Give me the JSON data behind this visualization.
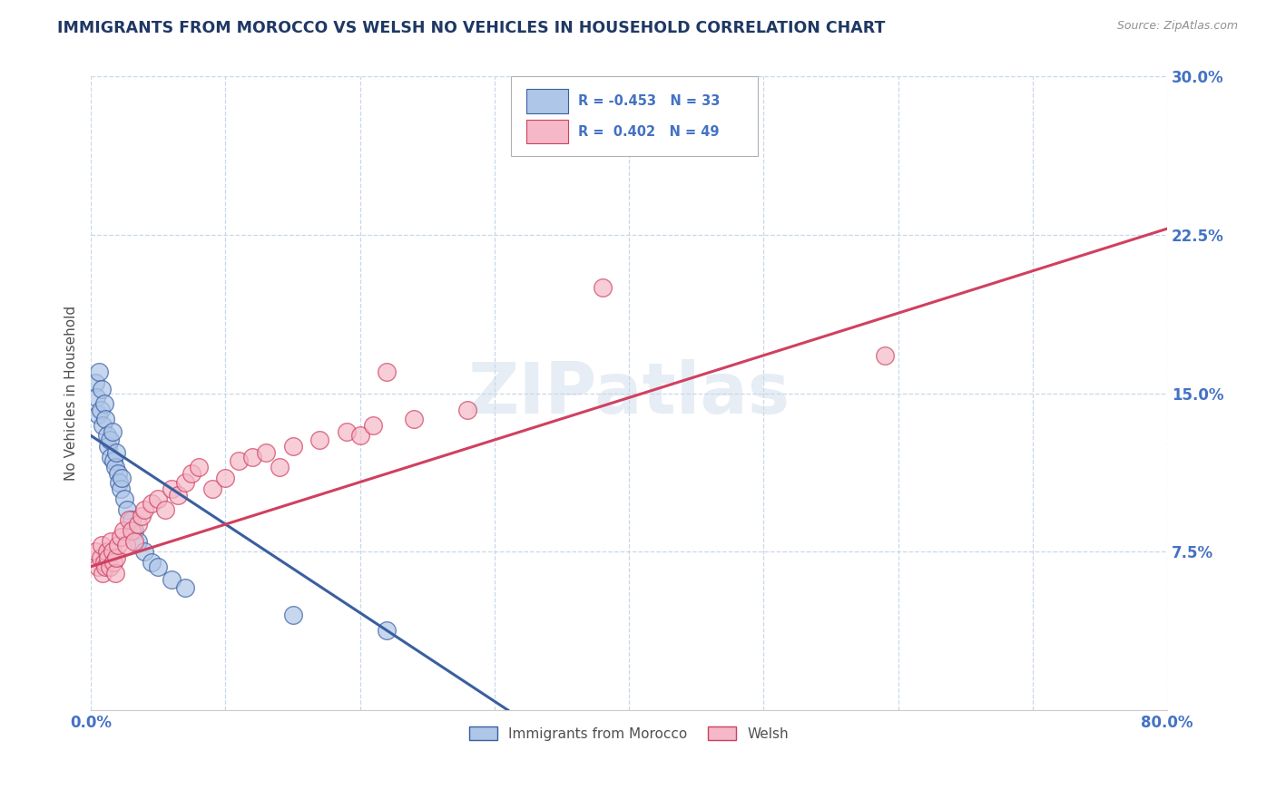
{
  "title": "IMMIGRANTS FROM MOROCCO VS WELSH NO VEHICLES IN HOUSEHOLD CORRELATION CHART",
  "source": "Source: ZipAtlas.com",
  "ylabel": "No Vehicles in Household",
  "watermark": "ZIPatlas",
  "legend_blue_R": "R = -0.453",
  "legend_blue_N": "N = 33",
  "legend_pink_R": "R =  0.402",
  "legend_pink_N": "N = 49",
  "legend_blue_label": "Immigrants from Morocco",
  "legend_pink_label": "Welsh",
  "xlim": [
    0.0,
    0.8
  ],
  "ylim": [
    0.0,
    0.3
  ],
  "xticks": [
    0.0,
    0.1,
    0.2,
    0.3,
    0.4,
    0.5,
    0.6,
    0.7,
    0.8
  ],
  "xticklabels": [
    "0.0%",
    "",
    "",
    "",
    "",
    "",
    "",
    "",
    "80.0%"
  ],
  "yticks": [
    0.0,
    0.075,
    0.15,
    0.225,
    0.3
  ],
  "yticklabels": [
    "",
    "7.5%",
    "15.0%",
    "22.5%",
    "30.0%"
  ],
  "blue_scatter_x": [
    0.003,
    0.004,
    0.005,
    0.006,
    0.007,
    0.008,
    0.009,
    0.01,
    0.011,
    0.012,
    0.013,
    0.014,
    0.015,
    0.016,
    0.017,
    0.018,
    0.019,
    0.02,
    0.021,
    0.022,
    0.023,
    0.025,
    0.027,
    0.03,
    0.032,
    0.035,
    0.04,
    0.045,
    0.05,
    0.06,
    0.07,
    0.15,
    0.22
  ],
  "blue_scatter_y": [
    0.155,
    0.148,
    0.14,
    0.16,
    0.142,
    0.152,
    0.135,
    0.145,
    0.138,
    0.13,
    0.125,
    0.128,
    0.12,
    0.132,
    0.118,
    0.115,
    0.122,
    0.112,
    0.108,
    0.105,
    0.11,
    0.1,
    0.095,
    0.09,
    0.085,
    0.08,
    0.075,
    0.07,
    0.068,
    0.062,
    0.058,
    0.045,
    0.038
  ],
  "pink_scatter_x": [
    0.003,
    0.005,
    0.007,
    0.008,
    0.009,
    0.01,
    0.011,
    0.012,
    0.013,
    0.014,
    0.015,
    0.016,
    0.017,
    0.018,
    0.019,
    0.02,
    0.022,
    0.024,
    0.026,
    0.028,
    0.03,
    0.032,
    0.035,
    0.038,
    0.04,
    0.045,
    0.05,
    0.055,
    0.06,
    0.065,
    0.07,
    0.075,
    0.08,
    0.09,
    0.1,
    0.11,
    0.12,
    0.13,
    0.14,
    0.15,
    0.17,
    0.19,
    0.2,
    0.21,
    0.22,
    0.24,
    0.28,
    0.38,
    0.59
  ],
  "pink_scatter_y": [
    0.075,
    0.068,
    0.072,
    0.078,
    0.065,
    0.07,
    0.068,
    0.075,
    0.072,
    0.068,
    0.08,
    0.075,
    0.07,
    0.065,
    0.072,
    0.078,
    0.082,
    0.085,
    0.078,
    0.09,
    0.085,
    0.08,
    0.088,
    0.092,
    0.095,
    0.098,
    0.1,
    0.095,
    0.105,
    0.102,
    0.108,
    0.112,
    0.115,
    0.105,
    0.11,
    0.118,
    0.12,
    0.122,
    0.115,
    0.125,
    0.128,
    0.132,
    0.13,
    0.135,
    0.16,
    0.138,
    0.142,
    0.2,
    0.168
  ],
  "blue_line_x": [
    0.0,
    0.31
  ],
  "blue_line_y": [
    0.13,
    0.0
  ],
  "pink_line_x": [
    0.0,
    0.8
  ],
  "pink_line_y": [
    0.068,
    0.228
  ],
  "blue_color": "#aec6e8",
  "pink_color": "#f4b8c8",
  "blue_line_color": "#3a5fa0",
  "pink_line_color": "#d04060",
  "background_color": "#ffffff",
  "grid_color": "#c8d8e8",
  "title_color": "#1f3864",
  "axis_label_color": "#505050",
  "tick_color": "#4472c4",
  "source_color": "#909090"
}
